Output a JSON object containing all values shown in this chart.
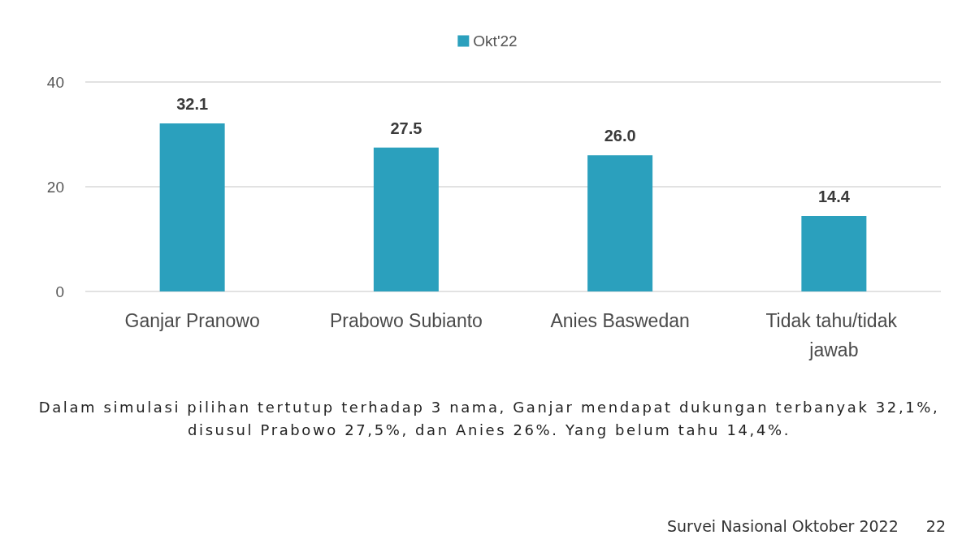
{
  "chart_data": {
    "type": "bar",
    "categories": [
      "Ganjar Pranowo",
      "Prabowo Subianto",
      "Anies Baswedan",
      "Tidak tahu/tidak jawab"
    ],
    "series": [
      {
        "name": "Okt'22",
        "color": "#2ba0bd",
        "values": [
          32.1,
          27.5,
          26.0,
          14.4
        ]
      }
    ],
    "value_labels": [
      "32.1",
      "27.5",
      "26.0",
      "14.4"
    ],
    "ylim": [
      0,
      40
    ],
    "yticks": [
      0,
      20,
      40
    ],
    "grid": "y",
    "legend": "top",
    "annotations": [
      "Dalam simulasi pilihan tertutup terhadap 3 nama, Ganjar mendapat dukungan terbanyak 32,1%, disusul Prabowo 27,5%, dan Anies 26%. Yang belum tahu 14,4%.",
      "Survei Nasional Oktober 2022",
      "22"
    ]
  }
}
